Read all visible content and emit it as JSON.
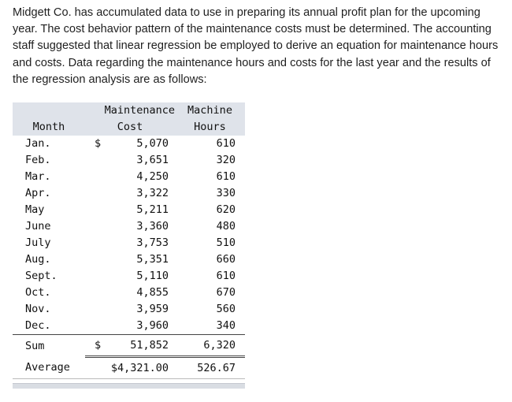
{
  "intro_text": "Midgett Co. has accumulated data to use in preparing its annual profit plan for the upcoming year. The cost behavior pattern of the maintenance costs must be determined. The accounting staff suggested that linear regression be employed to derive an equation for maintenance hours and costs. Data regarding the maintenance hours and costs for the last year and the results of the regression analysis are as follows:",
  "table": {
    "headers": {
      "month": "Month",
      "cost_line1": "Maintenance",
      "cost_line2": "Cost",
      "hours_line1": "Machine",
      "hours_line2": "Hours"
    },
    "rows": [
      {
        "month": "Jan.",
        "currency": "$",
        "cost": "5,070",
        "hours": "610"
      },
      {
        "month": "Feb.",
        "currency": "",
        "cost": "3,651",
        "hours": "320"
      },
      {
        "month": "Mar.",
        "currency": "",
        "cost": "4,250",
        "hours": "610"
      },
      {
        "month": "Apr.",
        "currency": "",
        "cost": "3,322",
        "hours": "330"
      },
      {
        "month": "May",
        "currency": "",
        "cost": "5,211",
        "hours": "620"
      },
      {
        "month": "June",
        "currency": "",
        "cost": "3,360",
        "hours": "480"
      },
      {
        "month": "July",
        "currency": "",
        "cost": "3,753",
        "hours": "510"
      },
      {
        "month": "Aug.",
        "currency": "",
        "cost": "5,351",
        "hours": "660"
      },
      {
        "month": "Sept.",
        "currency": "",
        "cost": "5,110",
        "hours": "610"
      },
      {
        "month": "Oct.",
        "currency": "",
        "cost": "4,855",
        "hours": "670"
      },
      {
        "month": "Nov.",
        "currency": "",
        "cost": "3,959",
        "hours": "560"
      },
      {
        "month": "Dec.",
        "currency": "",
        "cost": "3,960",
        "hours": "340"
      }
    ],
    "sum": {
      "label": "Sum",
      "currency": "$",
      "cost": "51,852",
      "hours": "6,320"
    },
    "average": {
      "label": "Average",
      "cost": "$4,321.00",
      "hours": "526.67"
    }
  }
}
